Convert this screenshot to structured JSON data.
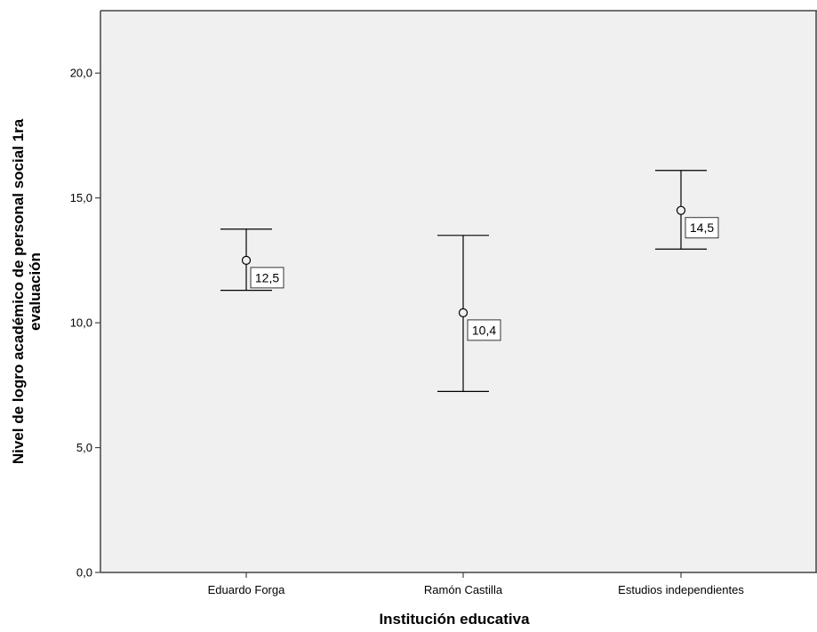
{
  "chart_data": {
    "type": "errorbar",
    "categories": [
      "Eduardo Forga",
      "Ramón Castilla",
      "Estudios independientes"
    ],
    "means": [
      12.5,
      10.4,
      14.5
    ],
    "mean_labels": [
      "12,5",
      "10,4",
      "14,5"
    ],
    "lower": [
      11.3,
      7.25,
      12.95
    ],
    "upper": [
      13.75,
      13.5,
      16.1
    ],
    "xlabel": "Institución educativa",
    "ylabel_lines": [
      "Nivel de logro académico de personal social 1ra",
      "evaluación"
    ],
    "ylim": [
      0,
      22.5
    ],
    "yticks": [
      0,
      5,
      10,
      15,
      20
    ],
    "ytick_labels": [
      "0,0",
      "5,0",
      "10,0",
      "15,0",
      "20,0"
    ],
    "grid": false,
    "colors": {
      "plot_background": "#f0f0f0",
      "marks": "#000000"
    }
  }
}
